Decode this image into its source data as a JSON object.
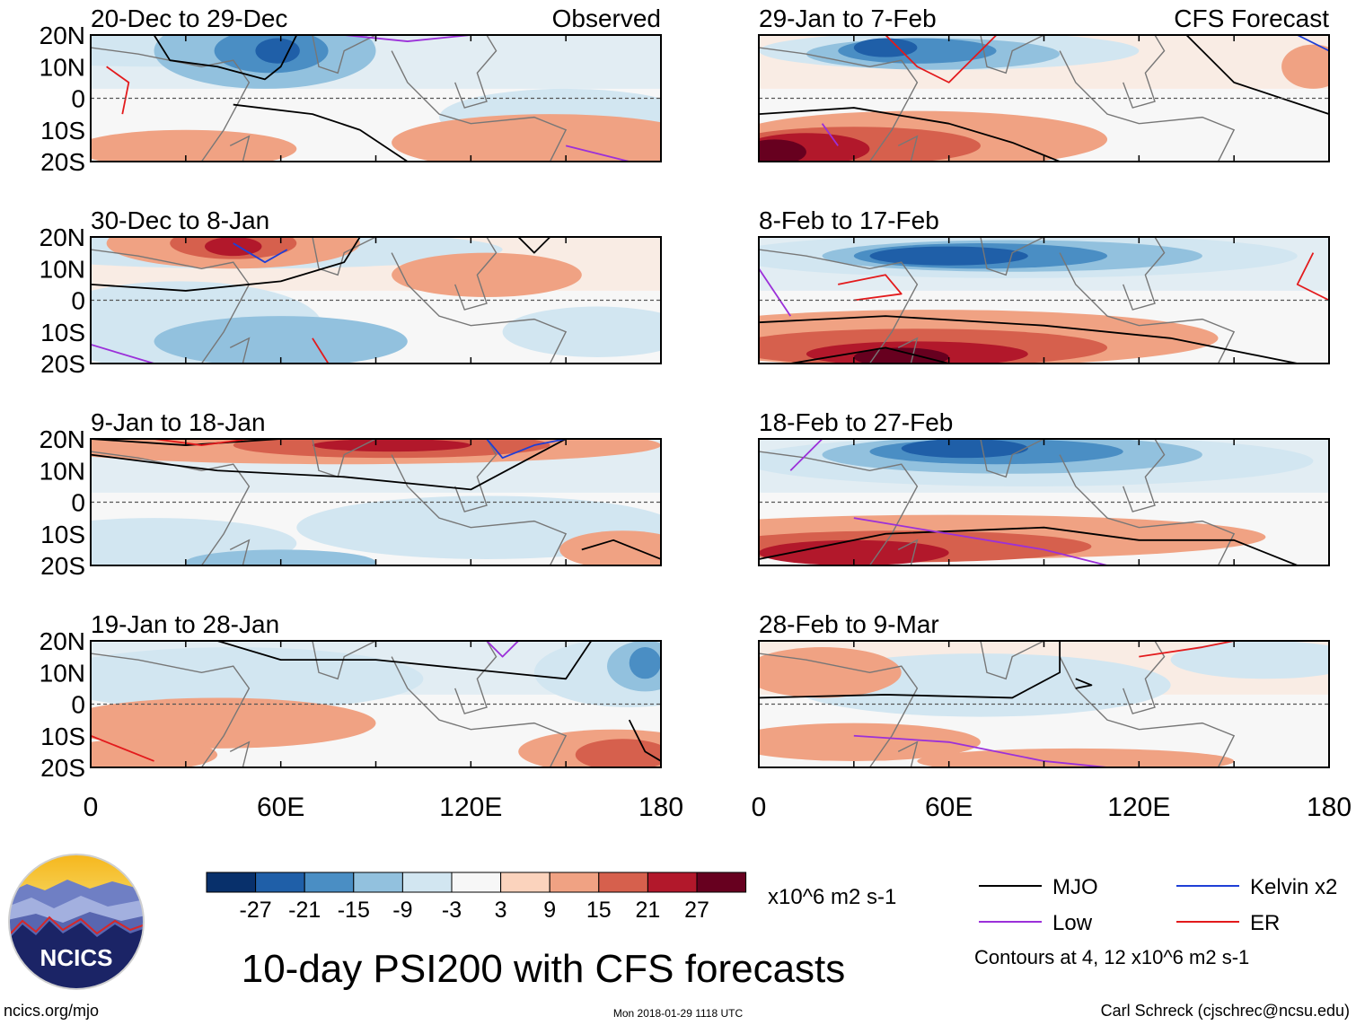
{
  "chart_data": {
    "type": "heatmap",
    "title": "10-day PSI200 with CFS forecasts",
    "variable": "PSI200",
    "units": "x10^6 m2 s-1",
    "x_axis": {
      "range": [
        0,
        180
      ],
      "tick_labels": [
        "0",
        "60E",
        "120E",
        "180"
      ]
    },
    "y_axis": {
      "range": [
        -20,
        20
      ],
      "tick_labels": [
        "20N",
        "10N",
        "0",
        "10S",
        "20S"
      ]
    },
    "colorbar": {
      "tick_labels": [
        "-27",
        "-21",
        "-15",
        "-9",
        "-3",
        "3",
        "9",
        "15",
        "21",
        "27"
      ],
      "colors": [
        "#08306b",
        "#1f5fa8",
        "#4a8ec4",
        "#92c1de",
        "#d2e6f1",
        "#f7f7f7",
        "#fbd3bd",
        "#f0a283",
        "#d6604d",
        "#b2182b",
        "#67001f"
      ]
    },
    "panels": [
      {
        "period": "20-Dec to 29-Dec",
        "source": "Observed"
      },
      {
        "period": "30-Dec to 8-Jan",
        "source": ""
      },
      {
        "period": "9-Jan to 18-Jan",
        "source": ""
      },
      {
        "period": "19-Jan to 28-Jan",
        "source": ""
      },
      {
        "period": "29-Jan to 7-Feb",
        "source": "CFS Forecast"
      },
      {
        "period": "8-Feb to 17-Feb",
        "source": ""
      },
      {
        "period": "18-Feb to 27-Feb",
        "source": ""
      },
      {
        "period": "28-Feb to 9-Mar",
        "source": ""
      }
    ],
    "legend": [
      {
        "label": "MJO",
        "color": "#000000"
      },
      {
        "label": "Kelvin x2",
        "color": "#1f3fd6"
      },
      {
        "label": "Low",
        "color": "#9b30d9"
      },
      {
        "label": "ER",
        "color": "#e31a1c"
      }
    ],
    "contour_note": "Contours at 4, 12 x10^6 m2 s-1"
  },
  "footer": {
    "logo_text": "NCICS",
    "url": "ncics.org/mjo",
    "timestamp": "Mon 2018-01-29 1118 UTC",
    "author": "Carl Schreck (cjschrec@ncsu.edu)"
  }
}
